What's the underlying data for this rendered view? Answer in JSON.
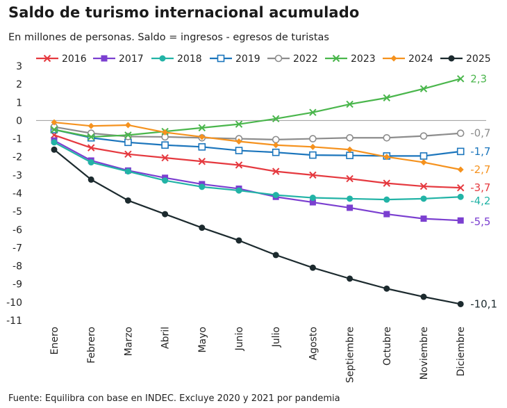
{
  "title": "Saldo de turismo internacional acumulado",
  "subtitle": "En millones de personas. Saldo = ingresos - egresos de turistas",
  "source": "Fuente: Equilibra con base en INDEC. Excluye 2020 y 2021 por pandemia",
  "chart_data": {
    "type": "line",
    "title": "Saldo de turismo internacional acumulado",
    "ylim": [
      -11,
      3
    ],
    "yticks": [
      3,
      2,
      1,
      0,
      -1,
      -2,
      -3,
      -4,
      -5,
      -6,
      -7,
      -8,
      -9,
      -10,
      -11
    ],
    "grid": false,
    "legend_position": "top",
    "categories": [
      "Enero",
      "Febrero",
      "Marzo",
      "Abril",
      "Mayo",
      "Junio",
      "Julio",
      "Agosto",
      "Septiembre",
      "Octubre",
      "Noviembre",
      "Diciembre"
    ],
    "series": [
      {
        "name": "2016",
        "color": "#e5393f",
        "marker": "x",
        "values": [
          -0.8,
          -1.5,
          -1.85,
          -2.05,
          -2.25,
          -2.45,
          -2.8,
          -3.0,
          -3.2,
          -3.45,
          -3.62,
          -3.7
        ],
        "end_label": "-3,7"
      },
      {
        "name": "2017",
        "color": "#7b3fd0",
        "marker": "square",
        "values": [
          -1.1,
          -2.2,
          -2.75,
          -3.15,
          -3.5,
          -3.75,
          -4.2,
          -4.5,
          -4.8,
          -5.15,
          -5.4,
          -5.5
        ],
        "end_label": "-5,5"
      },
      {
        "name": "2018",
        "color": "#22b3a6",
        "marker": "circle",
        "values": [
          -1.2,
          -2.3,
          -2.8,
          -3.3,
          -3.65,
          -3.85,
          -4.1,
          -4.25,
          -4.3,
          -4.35,
          -4.3,
          -4.2
        ],
        "end_label": "-4,2"
      },
      {
        "name": "2019",
        "color": "#1b75bc",
        "marker": "square-open",
        "values": [
          -0.5,
          -0.95,
          -1.2,
          -1.35,
          -1.45,
          -1.65,
          -1.75,
          -1.9,
          -1.92,
          -1.95,
          -1.95,
          -1.7
        ],
        "end_label": "-1,7"
      },
      {
        "name": "2022",
        "color": "#8c8c8c",
        "marker": "circle-open",
        "values": [
          -0.35,
          -0.7,
          -0.88,
          -0.9,
          -0.95,
          -1.0,
          -1.05,
          -1.0,
          -0.95,
          -0.95,
          -0.85,
          -0.7
        ],
        "end_label": "-0,7"
      },
      {
        "name": "2023",
        "color": "#4ab64c",
        "marker": "x",
        "values": [
          -0.5,
          -0.9,
          -0.8,
          -0.6,
          -0.4,
          -0.2,
          0.1,
          0.45,
          0.9,
          1.25,
          1.75,
          2.3
        ],
        "end_label": "2,3"
      },
      {
        "name": "2024",
        "color": "#f5921e",
        "marker": "diamond",
        "values": [
          -0.1,
          -0.3,
          -0.25,
          -0.65,
          -0.9,
          -1.15,
          -1.35,
          -1.45,
          -1.6,
          -2.0,
          -2.3,
          -2.7
        ],
        "end_label": "-2,7"
      },
      {
        "name": "2025",
        "color": "#1c2a2e",
        "marker": "circle",
        "values": [
          -1.6,
          -3.25,
          -4.4,
          -5.15,
          -5.9,
          -6.6,
          -7.4,
          -8.1,
          -8.7,
          -9.25,
          -9.7,
          -10.1
        ],
        "end_label": "-10,1"
      }
    ]
  }
}
